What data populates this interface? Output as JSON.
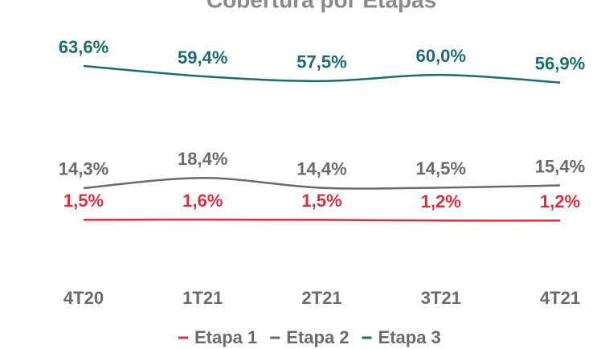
{
  "chart_data": {
    "type": "line",
    "title": "Cobertura por Etapas",
    "categories": [
      "4T20",
      "1T21",
      "2T21",
      "3T21",
      "4T21"
    ],
    "series": [
      {
        "name": "Etapa 1",
        "color": "#d7323e",
        "values": [
          1.5,
          1.6,
          1.5,
          1.2,
          1.2
        ],
        "value_labels": [
          "1,5%",
          "1,6%",
          "1,5%",
          "1,2%",
          "1,2%"
        ]
      },
      {
        "name": "Etapa 2",
        "color": "#6b6b6b",
        "values": [
          14.3,
          18.4,
          14.4,
          14.5,
          15.4
        ],
        "value_labels": [
          "14,3%",
          "18,4%",
          "14,4%",
          "14,5%",
          "15,4%"
        ]
      },
      {
        "name": "Etapa 3",
        "color": "#1c6e6c",
        "values": [
          63.6,
          59.4,
          57.5,
          60.0,
          56.9
        ],
        "value_labels": [
          "63,6%",
          "59,4%",
          "57,5%",
          "60,0%",
          "56,9%"
        ]
      }
    ],
    "legend": "bottom"
  }
}
